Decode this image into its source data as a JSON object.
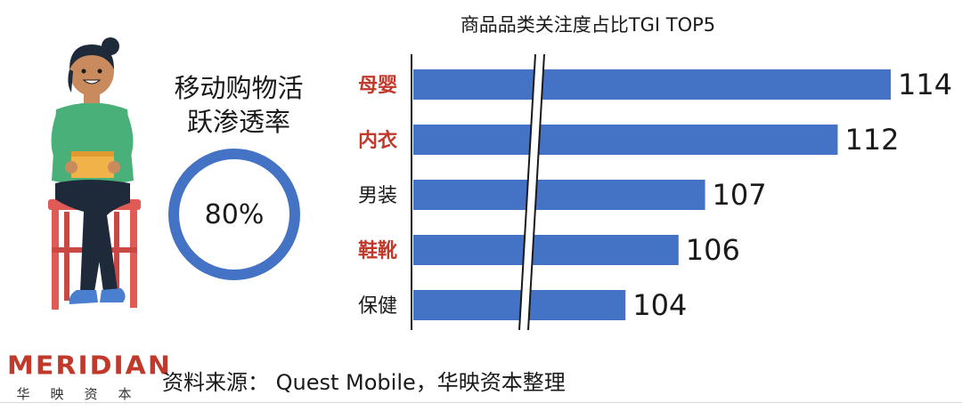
{
  "rate_panel": {
    "title_line1": "移动购物活",
    "title_line2": "跃渗透率",
    "value_text": "80%",
    "value": 80,
    "ring_color": "#4472c4"
  },
  "chart_data": {
    "type": "bar",
    "orientation": "horizontal",
    "title": "商品品类关注度占比TGI TOP5",
    "categories": [
      "母婴",
      "内衣",
      "男装",
      "鞋靴",
      "保健"
    ],
    "values": [
      114,
      112,
      107,
      106,
      104
    ],
    "highlighted_categories": [
      "母婴",
      "内衣",
      "鞋靴"
    ],
    "axis_break": true,
    "bar_color": "#4472c4",
    "highlight_color": "#c0392b",
    "label_color": "#1a1a1a",
    "xlim": [
      96,
      114
    ],
    "grid": false,
    "data_labels": true
  },
  "footer": {
    "logo_text": "MERIDIAN",
    "logo_sub": [
      "华",
      "映",
      "资",
      "本"
    ],
    "source": "资料来源： Quest Mobile，华映资本整理"
  }
}
